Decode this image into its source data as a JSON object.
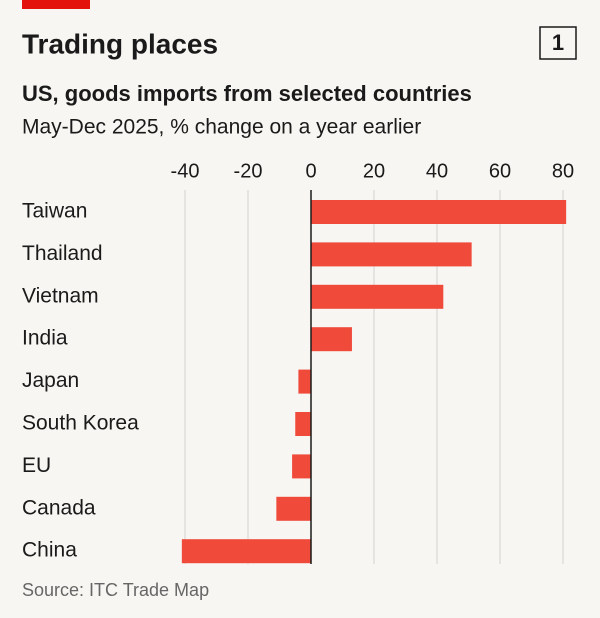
{
  "chart_data": {
    "type": "bar",
    "orientation": "horizontal",
    "title": "Trading places",
    "badge": "1",
    "subtitle": "US, goods imports from selected countries",
    "description": "May-Dec 2025, % change on a year earlier",
    "source": "Source: ITC Trade Map",
    "categories": [
      "Taiwan",
      "Thailand",
      "Vietnam",
      "India",
      "Japan",
      "South Korea",
      "EU",
      "Canada",
      "China"
    ],
    "values": [
      81,
      51,
      42,
      13,
      -4,
      -5,
      -6,
      -11,
      -41
    ],
    "color": "#ef4a3a",
    "xlim": [
      -42,
      82
    ],
    "xticks": [
      -40,
      -20,
      0,
      20,
      40,
      60,
      80
    ],
    "grid": true
  }
}
